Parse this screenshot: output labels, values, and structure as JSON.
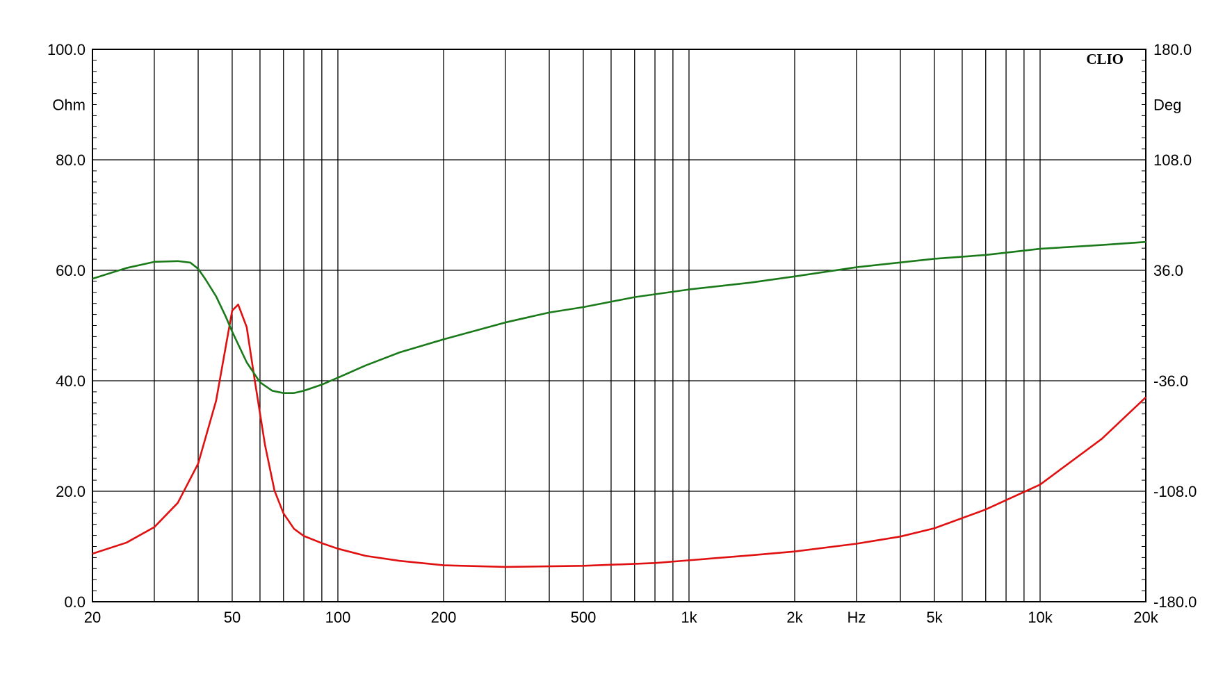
{
  "chart_data": {
    "type": "line",
    "brand": "CLIO",
    "grid": true,
    "x_axis": {
      "scale": "log",
      "range": [
        20,
        20000
      ],
      "unit_label": "Hz",
      "unit_label_at": 3000,
      "tick_labels": [
        {
          "value": 20,
          "label": "20"
        },
        {
          "value": 50,
          "label": "50"
        },
        {
          "value": 100,
          "label": "100"
        },
        {
          "value": 200,
          "label": "200"
        },
        {
          "value": 500,
          "label": "500"
        },
        {
          "value": 1000,
          "label": "1k"
        },
        {
          "value": 2000,
          "label": "2k"
        },
        {
          "value": 5000,
          "label": "5k"
        },
        {
          "value": 10000,
          "label": "10k"
        },
        {
          "value": 20000,
          "label": "20k"
        }
      ],
      "gridlines": [
        30,
        40,
        50,
        60,
        70,
        80,
        90,
        100,
        200,
        300,
        400,
        500,
        600,
        700,
        800,
        900,
        1000,
        2000,
        3000,
        4000,
        5000,
        6000,
        7000,
        8000,
        9000,
        10000,
        20000
      ]
    },
    "y_left": {
      "unit_label": "Ohm",
      "range": [
        0,
        100
      ],
      "tick_labels": [
        {
          "value": 0,
          "label": "0.0"
        },
        {
          "value": 20,
          "label": "20.0"
        },
        {
          "value": 40,
          "label": "40.0"
        },
        {
          "value": 60,
          "label": "60.0"
        },
        {
          "value": 80,
          "label": "80.0"
        },
        {
          "value": 100,
          "label": "100.0"
        }
      ]
    },
    "y_right": {
      "unit_label": "Deg",
      "range": [
        -180,
        180
      ],
      "tick_labels": [
        {
          "value": -180,
          "label": "-180.0"
        },
        {
          "value": -108,
          "label": "-108.0"
        },
        {
          "value": -36,
          "label": "-36.0"
        },
        {
          "value": 36,
          "label": "36.0"
        },
        {
          "value": 108,
          "label": "108.0"
        },
        {
          "value": 180,
          "label": "180.0"
        }
      ]
    },
    "series": [
      {
        "axis": "left",
        "color": "#e01010",
        "x": [
          20,
          25,
          30,
          35,
          40,
          45,
          48,
          50,
          52,
          55,
          58,
          62,
          66,
          70,
          75,
          80,
          90,
          100,
          120,
          150,
          200,
          300,
          500,
          800,
          1000,
          1500,
          2000,
          3000,
          4000,
          5000,
          7000,
          10000,
          15000,
          20000
        ],
        "y": [
          8.7,
          10.7,
          13.5,
          17.9,
          25.0,
          36.4,
          46.4,
          52.7,
          53.8,
          49.7,
          40.0,
          28.4,
          20.1,
          16.0,
          13.2,
          11.9,
          10.6,
          9.6,
          8.3,
          7.4,
          6.6,
          6.3,
          6.5,
          7.0,
          7.5,
          8.4,
          9.1,
          10.5,
          11.8,
          13.3,
          16.7,
          21.2,
          29.5,
          37.0
        ]
      },
      {
        "axis": "right",
        "color": "#1a7a1a",
        "x": [
          20,
          25,
          30,
          35,
          38,
          40,
          42,
          45,
          48,
          50,
          55,
          60,
          65,
          70,
          75,
          80,
          90,
          100,
          120,
          150,
          200,
          300,
          400,
          500,
          700,
          1000,
          1500,
          2000,
          3000,
          5000,
          7000,
          10000,
          15000,
          20000
        ],
        "y": [
          30.5,
          37.5,
          41.5,
          42.0,
          41.0,
          37.0,
          30.0,
          19.0,
          5.5,
          -4.0,
          -24.0,
          -37.0,
          -42.5,
          -44.0,
          -44.0,
          -42.5,
          -38.5,
          -34.0,
          -26.0,
          -17.5,
          -9.0,
          2.0,
          8.5,
          12.0,
          18.5,
          23.5,
          28.0,
          32.0,
          38.0,
          43.5,
          46.0,
          50.0,
          52.5,
          54.5
        ]
      }
    ]
  }
}
